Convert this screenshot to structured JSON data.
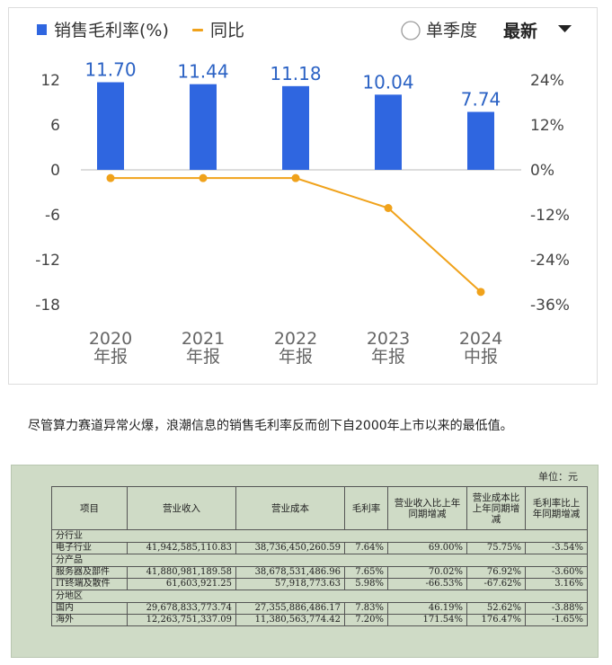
{
  "legend": {
    "bar_series": "销售毛利率(%)",
    "line_series": "同比"
  },
  "controls": {
    "single_quarter": "单季度",
    "latest": "最新"
  },
  "colors": {
    "bar": "#2f66e0",
    "line": "#f0a21b",
    "bar_label": "#2b62c4"
  },
  "chart_data": {
    "type": "bar",
    "categories": [
      [
        "2020",
        "年报"
      ],
      [
        "2021",
        "年报"
      ],
      [
        "2022",
        "年报"
      ],
      [
        "2023",
        "年报"
      ],
      [
        "2024",
        "中报"
      ]
    ],
    "series": [
      {
        "name": "销售毛利率(%)",
        "type": "bar",
        "axis": "left",
        "values": [
          11.7,
          11.44,
          11.18,
          10.04,
          7.74
        ],
        "labels": [
          "11.70",
          "11.44",
          "11.18",
          "10.04",
          "7.74"
        ]
      },
      {
        "name": "同比",
        "type": "line",
        "axis": "right",
        "values": [
          -2.2,
          -2.2,
          -2.2,
          -10.2,
          -32.6
        ]
      }
    ],
    "left_ticks": [
      "12",
      "6",
      "0",
      "-6",
      "-12",
      "-18"
    ],
    "left_tick_values": [
      12,
      6,
      0,
      -6,
      -12,
      -18
    ],
    "right_ticks": [
      "24%",
      "12%",
      "0%",
      "-12%",
      "-24%",
      "-36%"
    ],
    "right_tick_values": [
      24,
      12,
      0,
      -12,
      -24,
      -36
    ],
    "ylim_left": [
      -18,
      12
    ],
    "ylim_right": [
      -36,
      24
    ],
    "grid": false,
    "legend_position": "top-left"
  },
  "caption": "尽管算力赛道异常火爆，浪潮信息的销售毛利率反而创下自2000年上市以来的最低值。",
  "table": {
    "unit": "单位：元",
    "headers": [
      "项目",
      "营业收入",
      "营业成本",
      "毛利率",
      "营业收入比上年同期增减",
      "营业成本比上年同期增减",
      "毛利率比上年同期增减"
    ],
    "sections": [
      {
        "title": "分行业",
        "rows": [
          [
            "电子行业",
            "41,942,585,110.83",
            "38,736,450,260.59",
            "7.64%",
            "69.00%",
            "75.75%",
            "-3.54%"
          ]
        ]
      },
      {
        "title": "分产品",
        "rows": [
          [
            "服务器及部件",
            "41,880,981,189.58",
            "38,678,531,486.96",
            "7.65%",
            "70.02%",
            "76.92%",
            "-3.60%"
          ],
          [
            "IT终端及散件",
            "61,603,921.25",
            "57,918,773.63",
            "5.98%",
            "-66.53%",
            "-67.62%",
            "3.16%"
          ]
        ]
      },
      {
        "title": "分地区",
        "rows": [
          [
            "国内",
            "29,678,833,773.74",
            "27,355,886,486.17",
            "7.83%",
            "46.19%",
            "52.62%",
            "-3.88%"
          ],
          [
            "海外",
            "12,263,751,337.09",
            "11,380,563,774.42",
            "7.20%",
            "171.54%",
            "176.47%",
            "-1.65%"
          ]
        ]
      }
    ]
  }
}
